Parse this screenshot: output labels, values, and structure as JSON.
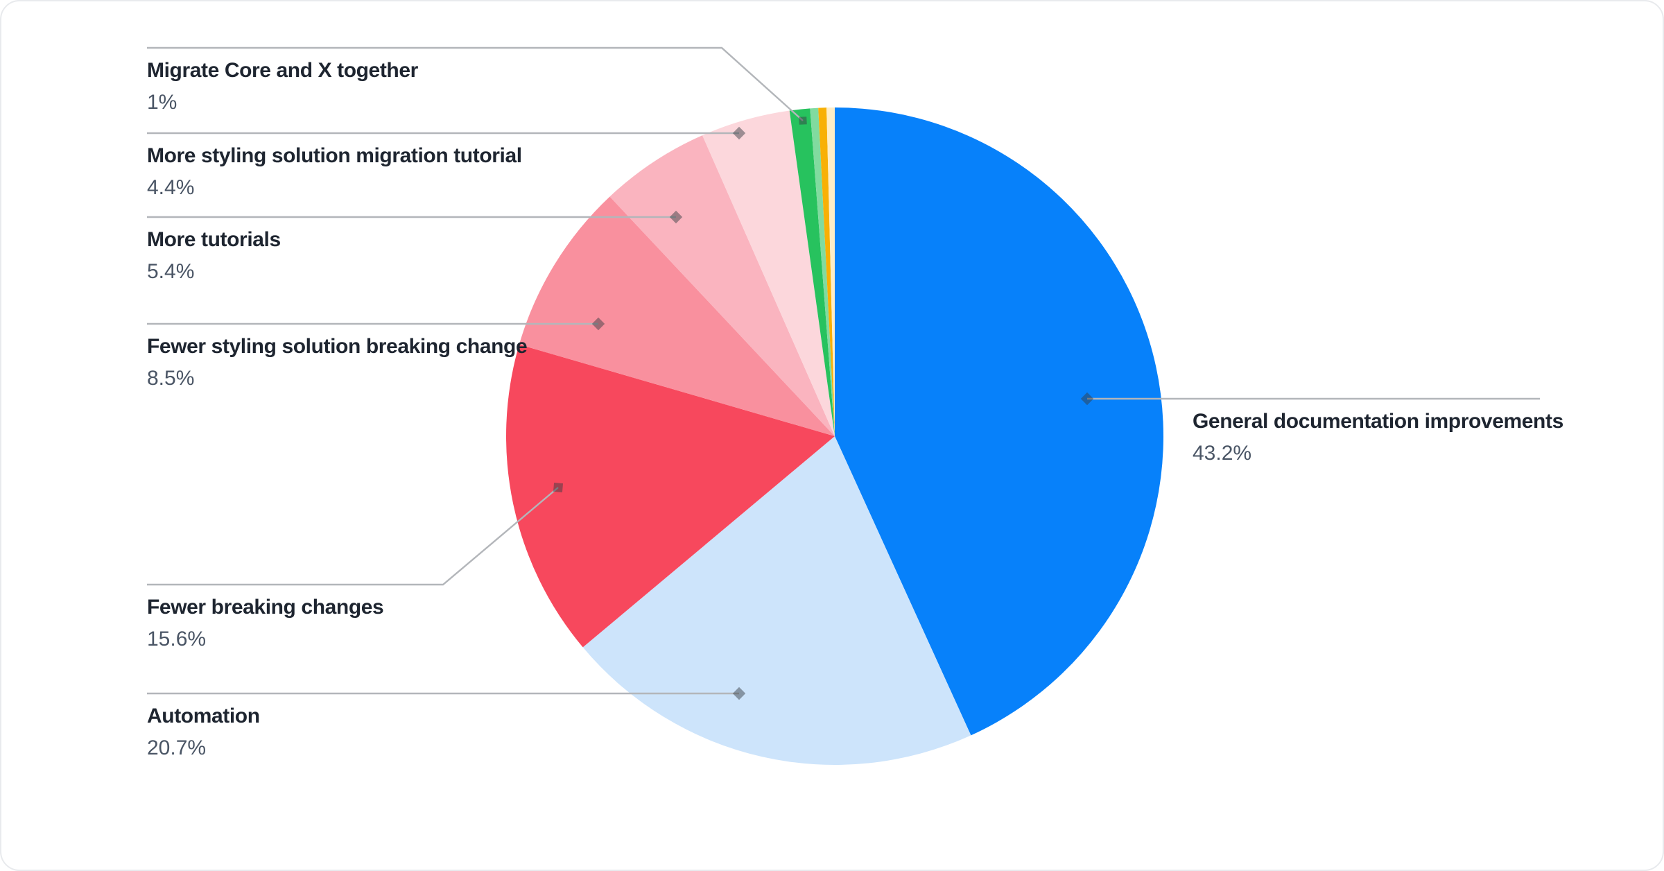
{
  "chart_data": {
    "type": "pie",
    "title": "",
    "direction": "clockwise",
    "start_angle_deg": 0,
    "legend_position": "callout-labels",
    "slices": [
      {
        "label": "General documentation improvements",
        "value": 43.2,
        "display": "43.2%",
        "color": "#0781fa"
      },
      {
        "label": "Automation",
        "value": 20.7,
        "display": "20.7%",
        "color": "#cde4fb"
      },
      {
        "label": "Fewer breaking changes",
        "value": 15.6,
        "display": "15.6%",
        "color": "#f7485d"
      },
      {
        "label": "Fewer styling solution breaking change",
        "value": 8.5,
        "display": "8.5%",
        "color": "#f9909e"
      },
      {
        "label": "More tutorials",
        "value": 5.4,
        "display": "5.4%",
        "color": "#fab4bf"
      },
      {
        "label": "More styling solution migration tutorial",
        "value": 4.4,
        "display": "4.4%",
        "color": "#fcd7dc"
      },
      {
        "label": "Migrate Core and X together",
        "value": 1.0,
        "display": "1%",
        "color": "#27c25e"
      },
      {
        "label": "",
        "value": 0.4,
        "display": "",
        "color": "#81db9f"
      },
      {
        "label": "",
        "value": 0.4,
        "display": "",
        "color": "#f8b005"
      },
      {
        "label": "",
        "value": 0.4,
        "display": "",
        "color": "#fdedc7"
      }
    ]
  },
  "palette": {
    "title-text": "#1e2530",
    "percent-text": "#4a5565",
    "leader-line": "#b3b6ba",
    "canvas-border": "#e8eaed",
    "background": "#ffffff",
    "leader-marker": "#373c42"
  }
}
